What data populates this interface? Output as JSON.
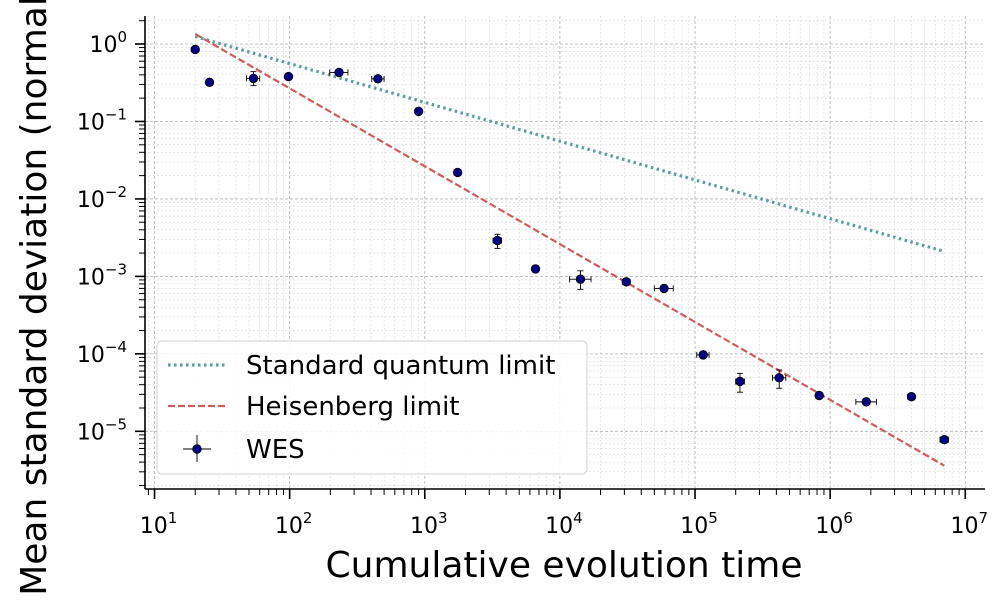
{
  "chart_data": {
    "type": "scatter",
    "xlabel": "Cumulative evolution time",
    "ylabel": "Mean standard deviation (normalized)",
    "xscale": "log",
    "yscale": "log",
    "xlim": [
      8.5,
      14000000
    ],
    "ylim": [
      1.8e-06,
      2.3
    ],
    "grid": "major and minor, dashed",
    "legend": "lower-left",
    "x_ticks": [
      {
        "base": "10",
        "exp": "1",
        "value": 10
      },
      {
        "base": "10",
        "exp": "2",
        "value": 100
      },
      {
        "base": "10",
        "exp": "3",
        "value": 1000
      },
      {
        "base": "10",
        "exp": "4",
        "value": 10000
      },
      {
        "base": "10",
        "exp": "5",
        "value": 100000
      },
      {
        "base": "10",
        "exp": "6",
        "value": 1000000
      },
      {
        "base": "10",
        "exp": "7",
        "value": 10000000
      }
    ],
    "y_ticks": [
      {
        "base": "10",
        "exp": "0",
        "value": 1
      },
      {
        "base": "10",
        "exp": "−1",
        "value": 0.1
      },
      {
        "base": "10",
        "exp": "−2",
        "value": 0.01
      },
      {
        "base": "10",
        "exp": "−3",
        "value": 0.001
      },
      {
        "base": "10",
        "exp": "−4",
        "value": 0.0001
      },
      {
        "base": "10",
        "exp": "−5",
        "value": 1e-05
      }
    ],
    "series": [
      {
        "name": "Standard quantum limit",
        "style": "dotted",
        "color": "#5f9ea0",
        "x": [
          20,
          7000000
        ],
        "y": [
          1.25,
          0.0021
        ]
      },
      {
        "name": "Heisenberg limit",
        "style": "dashed",
        "color": "#cd5c5c",
        "x": [
          20,
          7000000
        ],
        "y": [
          1.35,
          3.6e-06
        ]
      },
      {
        "name": "WES",
        "style": "markers with error bars",
        "color": "#000080",
        "points": [
          {
            "x": 20,
            "y": 0.85,
            "xerr": [
              19,
              21
            ],
            "yerr": [
              0.85,
              0.85
            ]
          },
          {
            "x": 25.5,
            "y": 0.32,
            "xerr": [
              25,
              26
            ],
            "yerr": [
              0.32,
              0.32
            ]
          },
          {
            "x": 54,
            "y": 0.36,
            "xerr": [
              48,
              60
            ],
            "yerr": [
              0.29,
              0.44
            ]
          },
          {
            "x": 98,
            "y": 0.38,
            "xerr": [
              94,
              102
            ],
            "yerr": [
              0.37,
              0.39
            ]
          },
          {
            "x": 232,
            "y": 0.43,
            "xerr": [
              198,
              270
            ],
            "yerr": [
              0.41,
              0.45
            ]
          },
          {
            "x": 450,
            "y": 0.355,
            "xerr": [
              405,
              500
            ],
            "yerr": [
              0.335,
              0.375
            ]
          },
          {
            "x": 900,
            "y": 0.135,
            "xerr": [
              860,
              940
            ],
            "yerr": [
              0.127,
              0.143
            ]
          },
          {
            "x": 1750,
            "y": 0.022,
            "xerr": [
              1650,
              1850
            ],
            "yerr": [
              0.021,
              0.023
            ]
          },
          {
            "x": 3450,
            "y": 0.0029,
            "xerr": [
              3200,
              3700
            ],
            "yerr": [
              0.0023,
              0.0035
            ]
          },
          {
            "x": 6600,
            "y": 0.00125,
            "xerr": [
              6300,
              6900
            ],
            "yerr": [
              0.00118,
              0.00132
            ]
          },
          {
            "x": 14200,
            "y": 0.00092,
            "xerr": [
              11800,
              17000
            ],
            "yerr": [
              0.00068,
              0.00118
            ]
          },
          {
            "x": 31000,
            "y": 0.00085,
            "xerr": [
              29000,
              33000
            ],
            "yerr": [
              0.00081,
              0.00089
            ]
          },
          {
            "x": 59000,
            "y": 0.0007,
            "xerr": [
              50000,
              69000
            ],
            "yerr": [
              0.00065,
              0.00075
            ]
          },
          {
            "x": 115000,
            "y": 9.7e-05,
            "xerr": [
              103000,
              127000
            ],
            "yerr": [
              9.2e-05,
              0.000102
            ]
          },
          {
            "x": 215000,
            "y": 4.4e-05,
            "xerr": [
              200000,
              232000
            ],
            "yerr": [
              3.2e-05,
              5.6e-05
            ]
          },
          {
            "x": 420000,
            "y": 4.9e-05,
            "xerr": [
              375000,
              470000
            ],
            "yerr": [
              3.6e-05,
              6.2e-05
            ]
          },
          {
            "x": 830000,
            "y": 2.9e-05,
            "xerr": [
              790000,
              870000
            ],
            "yerr": [
              2.7e-05,
              3.1e-05
            ]
          },
          {
            "x": 1850000,
            "y": 2.4e-05,
            "xerr": [
              1550000,
              2200000
            ],
            "yerr": [
              2.25e-05,
              2.55e-05
            ]
          },
          {
            "x": 4000000,
            "y": 2.8e-05,
            "xerr": [
              3750000,
              4250000
            ],
            "yerr": [
              2.65e-05,
              2.95e-05
            ]
          },
          {
            "x": 7000000,
            "y": 7.8e-06,
            "xerr": [
              6500000,
              7500000
            ],
            "yerr": [
              7.3e-06,
              8.3e-06
            ]
          }
        ]
      }
    ]
  }
}
